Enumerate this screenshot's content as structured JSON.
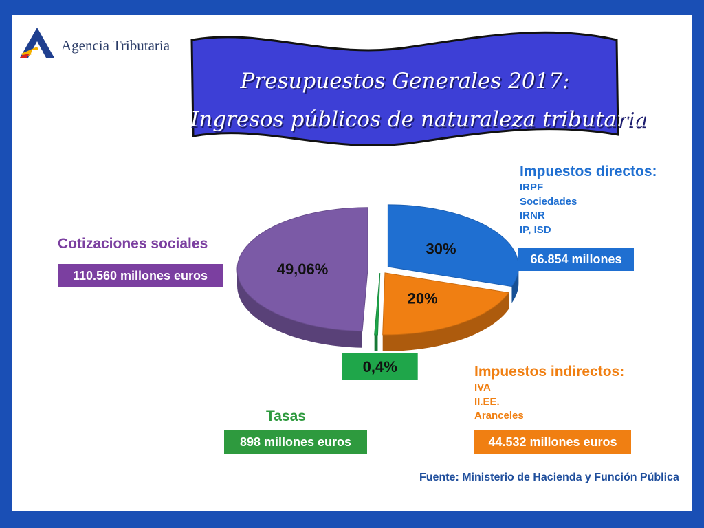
{
  "brand": {
    "name": "Agencia Tributaria"
  },
  "title": {
    "line1": "Presupuestos Generales 2017:",
    "line2": "Ingresos públicos de naturaleza tributaria"
  },
  "colors": {
    "frame": "#1a4fb5",
    "banner": "#3d3fd6",
    "cotizaciones": "#7b5aa6",
    "directos": "#1f6fd1",
    "indirectos": "#f07f12",
    "tasas": "#1fa64a"
  },
  "chart_data": {
    "type": "pie",
    "style": "3d-exploded",
    "categories": [
      "Impuestos directos",
      "Impuestos indirectos",
      "Tasas",
      "Cotizaciones sociales"
    ],
    "values": [
      30,
      20,
      0.4,
      49.06
    ],
    "data_labels": [
      "30%",
      "20%",
      "0,4%",
      "49,06%"
    ],
    "colors": [
      "#1f6fd1",
      "#f07f12",
      "#1fa64a",
      "#7b5aa6"
    ],
    "legend": "none"
  },
  "segments": {
    "directos": {
      "title": "Impuestos directos:",
      "items": [
        "IRPF",
        "Sociedades",
        "IRNR",
        "IP, ISD"
      ],
      "amount": "66.854 millones"
    },
    "indirectos": {
      "title": "Impuestos indirectos:",
      "items": [
        "IVA",
        "II.EE.",
        "Aranceles"
      ],
      "amount": "44.532 millones euros"
    },
    "tasas": {
      "title": "Tasas",
      "amount": "898 millones euros"
    },
    "cotizaciones": {
      "title": "Cotizaciones sociales",
      "amount": "110.560 millones euros"
    }
  },
  "source": "Fuente: Ministerio de Hacienda y Función Pública"
}
